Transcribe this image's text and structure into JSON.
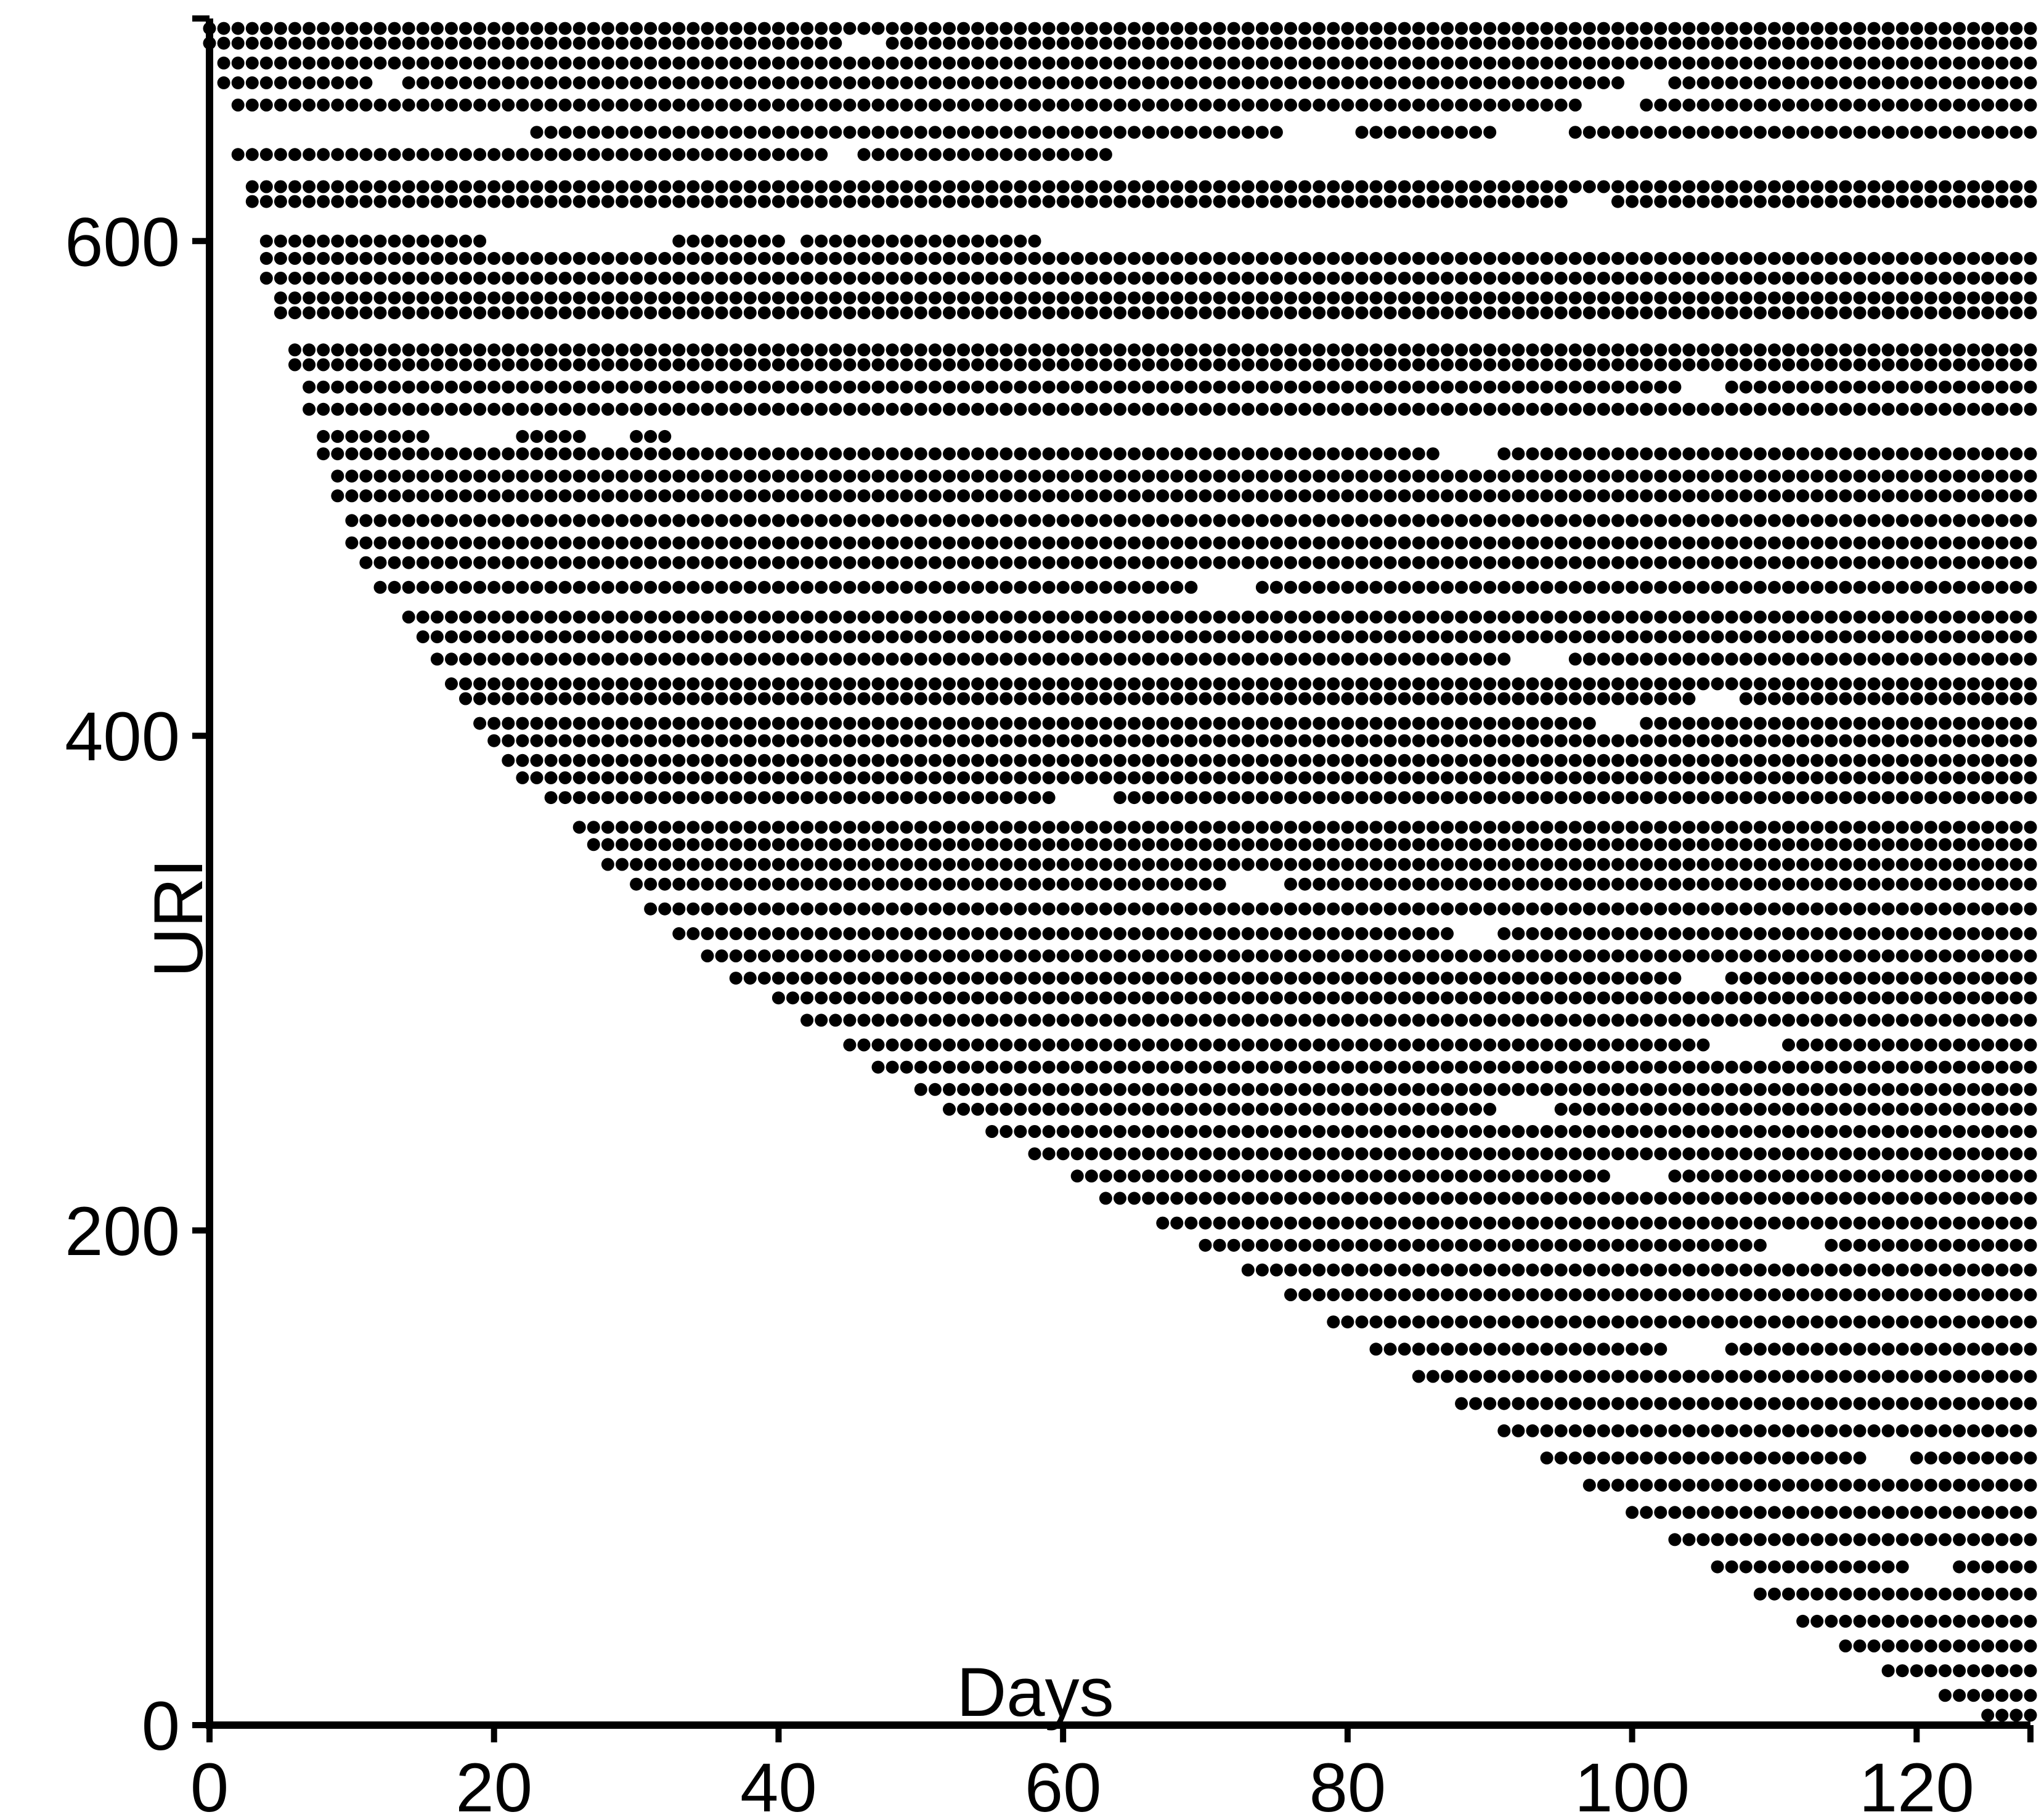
{
  "chart_data": {
    "type": "scatter",
    "title": "",
    "xlabel": "Days",
    "ylabel": "URI",
    "xlim": [
      0,
      128
    ],
    "ylim": [
      0,
      690
    ],
    "xticks": [
      "0",
      "20",
      "40",
      "60",
      "80",
      "100",
      "120"
    ],
    "yticks": [
      "0",
      "200",
      "400",
      "600"
    ],
    "grid": false,
    "legend": "none",
    "marker_color": "#000000",
    "description": "",
    "series": [
      {
        "rows": [
          {
            "uri": 686,
            "start": 0,
            "end": 128,
            "gaps": []
          },
          {
            "uri": 680,
            "start": 0,
            "end": 128,
            "gaps": [
              [
                45,
                47
              ]
            ]
          },
          {
            "uri": 672,
            "start": 1,
            "end": 128,
            "gaps": []
          },
          {
            "uri": 664,
            "start": 1,
            "end": 128,
            "gaps": [
              [
                12,
                13
              ],
              [
                100,
                102
              ]
            ]
          },
          {
            "uri": 655,
            "start": 2,
            "end": 128,
            "gaps": [
              [
                97,
                100
              ]
            ]
          },
          {
            "uri": 644,
            "start": 23,
            "end": 128,
            "gaps": [
              [
                76,
                80
              ],
              [
                91,
                95
              ]
            ]
          },
          {
            "uri": 635,
            "start": 2,
            "end": 63,
            "gaps": [
              [
                44,
                45
              ]
            ]
          },
          {
            "uri": 622,
            "start": 3,
            "end": 128,
            "gaps": []
          },
          {
            "uri": 616,
            "start": 3,
            "end": 128,
            "gaps": [
              [
                96,
                98
              ]
            ]
          },
          {
            "uri": 600,
            "start": 4,
            "end": 19,
            "gaps": []
          },
          {
            "uri": 600,
            "start": 33,
            "end": 40,
            "gaps": []
          },
          {
            "uri": 600,
            "start": 42,
            "end": 58,
            "gaps": []
          },
          {
            "uri": 593,
            "start": 4,
            "end": 128,
            "gaps": []
          },
          {
            "uri": 585,
            "start": 4,
            "end": 128,
            "gaps": []
          },
          {
            "uri": 577,
            "start": 5,
            "end": 128,
            "gaps": []
          },
          {
            "uri": 571,
            "start": 5,
            "end": 128,
            "gaps": []
          },
          {
            "uri": 556,
            "start": 6,
            "end": 128,
            "gaps": []
          },
          {
            "uri": 550,
            "start": 6,
            "end": 128,
            "gaps": []
          },
          {
            "uri": 541,
            "start": 7,
            "end": 128,
            "gaps": [
              [
                104,
                106
              ]
            ]
          },
          {
            "uri": 532,
            "start": 7,
            "end": 128,
            "gaps": []
          },
          {
            "uri": 521,
            "start": 8,
            "end": 15,
            "gaps": []
          },
          {
            "uri": 521,
            "start": 22,
            "end": 26,
            "gaps": []
          },
          {
            "uri": 521,
            "start": 30,
            "end": 32,
            "gaps": []
          },
          {
            "uri": 514,
            "start": 8,
            "end": 128,
            "gaps": [
              [
                87,
                90
              ]
            ]
          },
          {
            "uri": 505,
            "start": 9,
            "end": 128,
            "gaps": []
          },
          {
            "uri": 497,
            "start": 9,
            "end": 128,
            "gaps": []
          },
          {
            "uri": 487,
            "start": 10,
            "end": 128,
            "gaps": []
          },
          {
            "uri": 478,
            "start": 10,
            "end": 128,
            "gaps": []
          },
          {
            "uri": 470,
            "start": 11,
            "end": 128,
            "gaps": []
          },
          {
            "uri": 460,
            "start": 12,
            "end": 128,
            "gaps": [
              [
                70,
                73
              ]
            ]
          },
          {
            "uri": 448,
            "start": 14,
            "end": 128,
            "gaps": []
          },
          {
            "uri": 440,
            "start": 15,
            "end": 128,
            "gaps": []
          },
          {
            "uri": 431,
            "start": 16,
            "end": 128,
            "gaps": [
              [
                92,
                95
              ]
            ]
          },
          {
            "uri": 421,
            "start": 17,
            "end": 128,
            "gaps": []
          },
          {
            "uri": 415,
            "start": 18,
            "end": 128,
            "gaps": [
              [
                105,
                107
              ]
            ]
          },
          {
            "uri": 405,
            "start": 19,
            "end": 128,
            "gaps": [
              [
                98,
                100
              ]
            ]
          },
          {
            "uri": 398,
            "start": 20,
            "end": 128,
            "gaps": []
          },
          {
            "uri": 390,
            "start": 21,
            "end": 128,
            "gaps": []
          },
          {
            "uri": 383,
            "start": 22,
            "end": 128,
            "gaps": []
          },
          {
            "uri": 375,
            "start": 24,
            "end": 128,
            "gaps": [
              [
                60,
                63
              ]
            ]
          },
          {
            "uri": 363,
            "start": 26,
            "end": 128,
            "gaps": []
          },
          {
            "uri": 356,
            "start": 27,
            "end": 128,
            "gaps": []
          },
          {
            "uri": 348,
            "start": 28,
            "end": 128,
            "gaps": []
          },
          {
            "uri": 340,
            "start": 30,
            "end": 128,
            "gaps": [
              [
                72,
                75
              ]
            ]
          },
          {
            "uri": 330,
            "start": 31,
            "end": 128,
            "gaps": []
          },
          {
            "uri": 320,
            "start": 33,
            "end": 128,
            "gaps": [
              [
                88,
                90
              ]
            ]
          },
          {
            "uri": 311,
            "start": 35,
            "end": 128,
            "gaps": []
          },
          {
            "uri": 302,
            "start": 37,
            "end": 128,
            "gaps": [
              [
                104,
                106
              ]
            ]
          },
          {
            "uri": 294,
            "start": 40,
            "end": 128,
            "gaps": []
          },
          {
            "uri": 285,
            "start": 42,
            "end": 128,
            "gaps": []
          },
          {
            "uri": 275,
            "start": 45,
            "end": 128,
            "gaps": [
              [
                106,
                110
              ]
            ]
          },
          {
            "uri": 266,
            "start": 47,
            "end": 128,
            "gaps": []
          },
          {
            "uri": 257,
            "start": 50,
            "end": 128,
            "gaps": []
          },
          {
            "uri": 249,
            "start": 52,
            "end": 128,
            "gaps": [
              [
                91,
                94
              ]
            ]
          },
          {
            "uri": 240,
            "start": 55,
            "end": 128,
            "gaps": []
          },
          {
            "uri": 231,
            "start": 58,
            "end": 128,
            "gaps": []
          },
          {
            "uri": 222,
            "start": 61,
            "end": 128,
            "gaps": [
              [
                99,
                102
              ]
            ]
          },
          {
            "uri": 213,
            "start": 63,
            "end": 128,
            "gaps": []
          },
          {
            "uri": 203,
            "start": 67,
            "end": 128,
            "gaps": []
          },
          {
            "uri": 194,
            "start": 70,
            "end": 128,
            "gaps": [
              [
                110,
                113
              ]
            ]
          },
          {
            "uri": 184,
            "start": 73,
            "end": 128,
            "gaps": []
          },
          {
            "uri": 174,
            "start": 76,
            "end": 128,
            "gaps": []
          },
          {
            "uri": 163,
            "start": 79,
            "end": 128,
            "gaps": []
          },
          {
            "uri": 152,
            "start": 82,
            "end": 128,
            "gaps": [
              [
                103,
                106
              ]
            ]
          },
          {
            "uri": 141,
            "start": 85,
            "end": 128,
            "gaps": []
          },
          {
            "uri": 130,
            "start": 88,
            "end": 128,
            "gaps": []
          },
          {
            "uri": 119,
            "start": 91,
            "end": 128,
            "gaps": []
          },
          {
            "uri": 108,
            "start": 94,
            "end": 128,
            "gaps": [
              [
                117,
                119
              ]
            ]
          },
          {
            "uri": 97,
            "start": 97,
            "end": 128,
            "gaps": []
          },
          {
            "uri": 86,
            "start": 100,
            "end": 128,
            "gaps": []
          },
          {
            "uri": 75,
            "start": 103,
            "end": 128,
            "gaps": []
          },
          {
            "uri": 64,
            "start": 106,
            "end": 128,
            "gaps": [
              [
                120,
                122
              ]
            ]
          },
          {
            "uri": 53,
            "start": 109,
            "end": 128,
            "gaps": []
          },
          {
            "uri": 42,
            "start": 112,
            "end": 128,
            "gaps": []
          },
          {
            "uri": 32,
            "start": 115,
            "end": 128,
            "gaps": []
          },
          {
            "uri": 22,
            "start": 118,
            "end": 128,
            "gaps": []
          },
          {
            "uri": 12,
            "start": 122,
            "end": 128,
            "gaps": []
          },
          {
            "uri": 4,
            "start": 125,
            "end": 128,
            "gaps": []
          }
        ]
      }
    ]
  }
}
